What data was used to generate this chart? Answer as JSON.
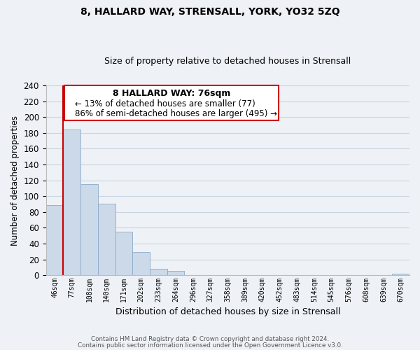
{
  "title": "8, HALLARD WAY, STRENSALL, YORK, YO32 5ZQ",
  "subtitle": "Size of property relative to detached houses in Strensall",
  "xlabel": "Distribution of detached houses by size in Strensall",
  "ylabel": "Number of detached properties",
  "bar_labels": [
    "46sqm",
    "77sqm",
    "108sqm",
    "140sqm",
    "171sqm",
    "202sqm",
    "233sqm",
    "264sqm",
    "296sqm",
    "327sqm",
    "358sqm",
    "389sqm",
    "420sqm",
    "452sqm",
    "483sqm",
    "514sqm",
    "545sqm",
    "576sqm",
    "608sqm",
    "639sqm",
    "670sqm"
  ],
  "bar_values": [
    89,
    184,
    115,
    90,
    55,
    29,
    8,
    5,
    0,
    0,
    0,
    0,
    0,
    0,
    0,
    0,
    0,
    0,
    0,
    0,
    2
  ],
  "bar_color": "#ccd9e8",
  "bar_edge_color": "#8aaac8",
  "vline_color": "#cc0000",
  "ylim": [
    0,
    240
  ],
  "yticks": [
    0,
    20,
    40,
    60,
    80,
    100,
    120,
    140,
    160,
    180,
    200,
    220,
    240
  ],
  "annotation_title": "8 HALLARD WAY: 76sqm",
  "annotation_line1": "← 13% of detached houses are smaller (77)",
  "annotation_line2": "86% of semi-detached houses are larger (495) →",
  "footer_line1": "Contains HM Land Registry data © Crown copyright and database right 2024.",
  "footer_line2": "Contains public sector information licensed under the Open Government Licence v3.0.",
  "bg_color": "#eef2f7",
  "plot_bg_color": "#eef2f7",
  "grid_color": "#c8d4e0",
  "annotation_box_color": "#ffffff",
  "annotation_box_edge": "#cc0000",
  "title_fontsize": 10,
  "subtitle_fontsize": 9
}
